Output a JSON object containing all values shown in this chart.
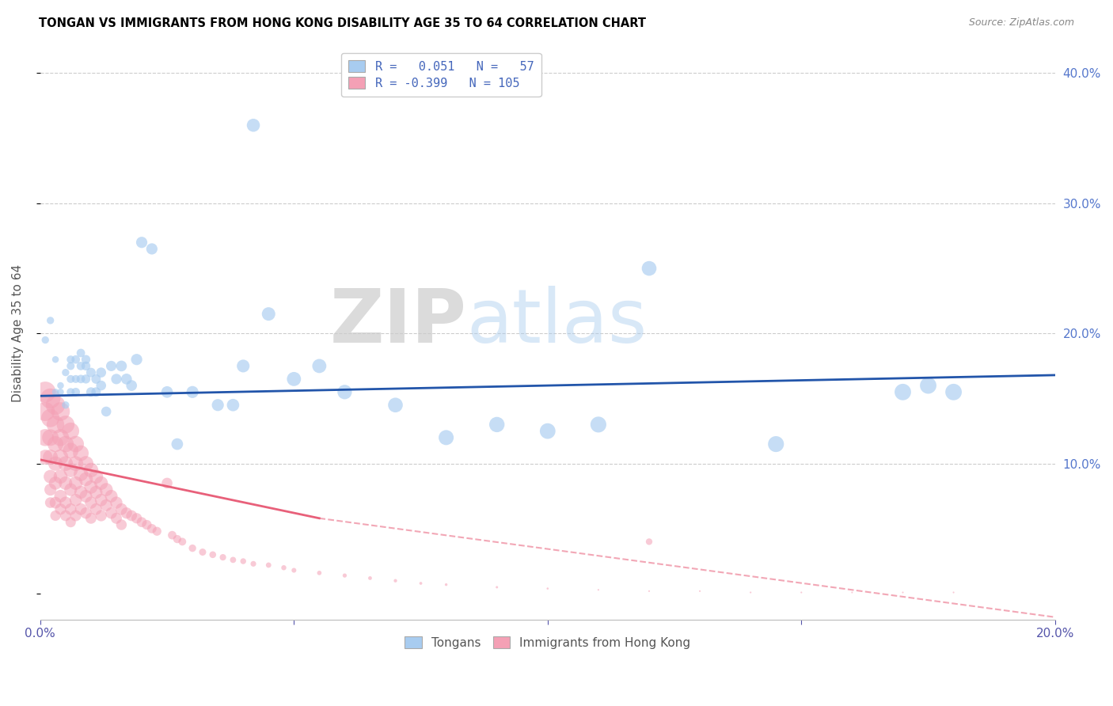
{
  "title": "TONGAN VS IMMIGRANTS FROM HONG KONG DISABILITY AGE 35 TO 64 CORRELATION CHART",
  "source": "Source: ZipAtlas.com",
  "ylabel": "Disability Age 35 to 64",
  "x_min": 0.0,
  "x_max": 0.2,
  "y_min": -0.02,
  "y_max": 0.42,
  "color_blue": "#A8CCF0",
  "color_pink": "#F4A0B5",
  "line_blue": "#2255AA",
  "line_pink": "#E8607A",
  "watermark_zip": "ZIP",
  "watermark_atlas": "atlas",
  "blue_line_y0": 0.152,
  "blue_line_y1": 0.168,
  "pink_line_x0": 0.0,
  "pink_line_y0": 0.103,
  "pink_line_solid_x1": 0.055,
  "pink_line_solid_y1": 0.058,
  "pink_line_dash_x1": 0.2,
  "pink_line_dash_y1": -0.018,
  "tongans_x": [
    0.001,
    0.002,
    0.003,
    0.003,
    0.004,
    0.004,
    0.005,
    0.005,
    0.006,
    0.006,
    0.006,
    0.006,
    0.007,
    0.007,
    0.007,
    0.008,
    0.008,
    0.008,
    0.009,
    0.009,
    0.009,
    0.01,
    0.01,
    0.011,
    0.011,
    0.012,
    0.012,
    0.013,
    0.014,
    0.015,
    0.016,
    0.017,
    0.018,
    0.019,
    0.02,
    0.022,
    0.025,
    0.027,
    0.03,
    0.035,
    0.038,
    0.04,
    0.042,
    0.045,
    0.05,
    0.055,
    0.06,
    0.07,
    0.08,
    0.09,
    0.1,
    0.11,
    0.12,
    0.145,
    0.17,
    0.175,
    0.18
  ],
  "tongans_y": [
    0.195,
    0.21,
    0.155,
    0.18,
    0.155,
    0.16,
    0.17,
    0.145,
    0.18,
    0.155,
    0.175,
    0.165,
    0.165,
    0.155,
    0.18,
    0.165,
    0.175,
    0.185,
    0.175,
    0.165,
    0.18,
    0.155,
    0.17,
    0.165,
    0.155,
    0.16,
    0.17,
    0.14,
    0.175,
    0.165,
    0.175,
    0.165,
    0.16,
    0.18,
    0.27,
    0.265,
    0.155,
    0.115,
    0.155,
    0.145,
    0.145,
    0.175,
    0.36,
    0.215,
    0.165,
    0.175,
    0.155,
    0.145,
    0.12,
    0.13,
    0.125,
    0.13,
    0.25,
    0.115,
    0.155,
    0.16,
    0.155
  ],
  "tongans_size": [
    30,
    30,
    25,
    25,
    25,
    25,
    30,
    30,
    35,
    35,
    35,
    35,
    35,
    40,
    40,
    40,
    40,
    40,
    45,
    45,
    45,
    50,
    50,
    50,
    50,
    55,
    55,
    55,
    60,
    60,
    65,
    65,
    65,
    70,
    70,
    70,
    75,
    75,
    80,
    80,
    85,
    90,
    95,
    100,
    110,
    110,
    115,
    120,
    125,
    130,
    135,
    140,
    120,
    140,
    150,
    150,
    150
  ],
  "hk_x": [
    0.001,
    0.001,
    0.001,
    0.001,
    0.002,
    0.002,
    0.002,
    0.002,
    0.002,
    0.002,
    0.002,
    0.003,
    0.003,
    0.003,
    0.003,
    0.003,
    0.003,
    0.003,
    0.004,
    0.004,
    0.004,
    0.004,
    0.004,
    0.004,
    0.005,
    0.005,
    0.005,
    0.005,
    0.005,
    0.005,
    0.006,
    0.006,
    0.006,
    0.006,
    0.006,
    0.006,
    0.007,
    0.007,
    0.007,
    0.007,
    0.007,
    0.008,
    0.008,
    0.008,
    0.008,
    0.009,
    0.009,
    0.009,
    0.009,
    0.01,
    0.01,
    0.01,
    0.01,
    0.011,
    0.011,
    0.011,
    0.012,
    0.012,
    0.012,
    0.013,
    0.013,
    0.014,
    0.014,
    0.015,
    0.015,
    0.016,
    0.016,
    0.017,
    0.018,
    0.019,
    0.02,
    0.021,
    0.022,
    0.023,
    0.025,
    0.026,
    0.027,
    0.028,
    0.03,
    0.032,
    0.034,
    0.036,
    0.038,
    0.04,
    0.042,
    0.045,
    0.048,
    0.05,
    0.055,
    0.06,
    0.065,
    0.07,
    0.075,
    0.08,
    0.09,
    0.1,
    0.11,
    0.12,
    0.13,
    0.14,
    0.15,
    0.16,
    0.17,
    0.18,
    0.12
  ],
  "hk_y": [
    0.155,
    0.14,
    0.12,
    0.105,
    0.15,
    0.135,
    0.12,
    0.105,
    0.09,
    0.08,
    0.07,
    0.145,
    0.13,
    0.115,
    0.1,
    0.085,
    0.07,
    0.06,
    0.14,
    0.12,
    0.105,
    0.09,
    0.075,
    0.065,
    0.13,
    0.115,
    0.1,
    0.085,
    0.07,
    0.06,
    0.125,
    0.11,
    0.095,
    0.08,
    0.065,
    0.055,
    0.115,
    0.1,
    0.085,
    0.072,
    0.06,
    0.108,
    0.092,
    0.078,
    0.065,
    0.1,
    0.088,
    0.075,
    0.062,
    0.095,
    0.082,
    0.07,
    0.058,
    0.09,
    0.078,
    0.065,
    0.085,
    0.072,
    0.06,
    0.08,
    0.068,
    0.075,
    0.062,
    0.07,
    0.058,
    0.065,
    0.053,
    0.062,
    0.06,
    0.058,
    0.055,
    0.053,
    0.05,
    0.048,
    0.085,
    0.045,
    0.042,
    0.04,
    0.035,
    0.032,
    0.03,
    0.028,
    0.026,
    0.025,
    0.023,
    0.022,
    0.02,
    0.018,
    0.016,
    0.014,
    0.012,
    0.01,
    0.008,
    0.007,
    0.005,
    0.004,
    0.003,
    0.002,
    0.002,
    0.001,
    0.001,
    0.001,
    0.001,
    0.001,
    0.04
  ],
  "hk_size": [
    300,
    250,
    200,
    150,
    280,
    230,
    190,
    155,
    125,
    100,
    80,
    260,
    215,
    175,
    145,
    118,
    95,
    75,
    240,
    200,
    165,
    135,
    110,
    88,
    220,
    185,
    152,
    124,
    100,
    82,
    200,
    168,
    138,
    113,
    92,
    74,
    185,
    155,
    128,
    105,
    85,
    170,
    142,
    118,
    96,
    158,
    132,
    110,
    90,
    148,
    124,
    103,
    84,
    138,
    115,
    95,
    128,
    108,
    88,
    120,
    100,
    110,
    92,
    102,
    85,
    95,
    78,
    88,
    82,
    76,
    70,
    65,
    60,
    55,
    80,
    50,
    46,
    42,
    38,
    35,
    32,
    29,
    26,
    24,
    22,
    20,
    18,
    16,
    14,
    12,
    10,
    8,
    6,
    5,
    4,
    3,
    2,
    2,
    2,
    2,
    2,
    2,
    2,
    2,
    30
  ]
}
